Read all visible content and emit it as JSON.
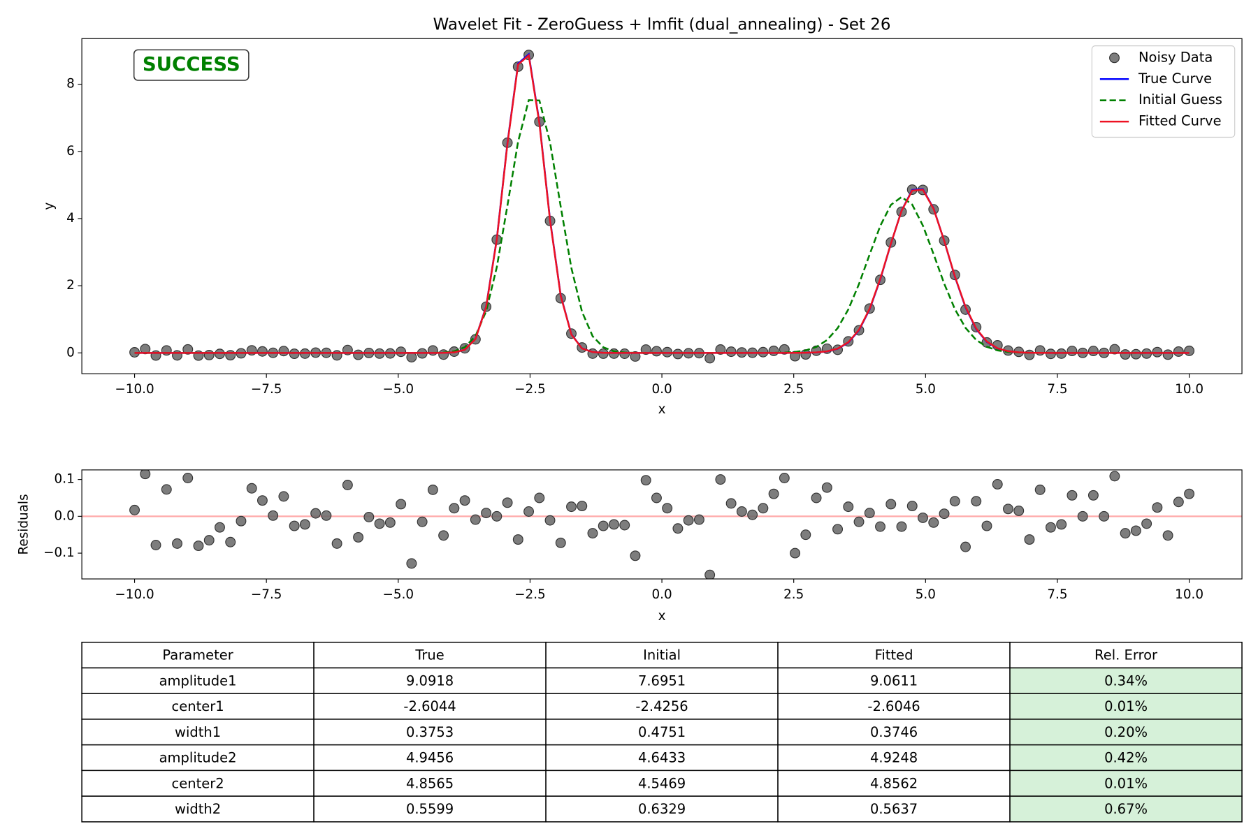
{
  "chart_data": [
    {
      "type": "line",
      "title": "Wavelet Fit - ZeroGuess + lmfit (dual_annealing) - Set 26",
      "xlabel": "x",
      "ylabel": "y",
      "annotation": "SUCCESS",
      "legend": "upper right",
      "grid": false,
      "xlim": [
        -11,
        11
      ],
      "ylim": [
        -0.62,
        9.36
      ],
      "xticks": [
        {
          "value": -10,
          "label": "−10.0"
        },
        {
          "value": -7.5,
          "label": "−7.5"
        },
        {
          "value": -5,
          "label": "−5.0"
        },
        {
          "value": -2.5,
          "label": "−2.5"
        },
        {
          "value": 0,
          "label": "0.0"
        },
        2.5,
        {
          "value": 5,
          "label": "5.0"
        },
        7.5,
        {
          "value": 10,
          "label": "10.0"
        }
      ],
      "yticks": [
        0,
        2,
        4,
        6,
        8
      ],
      "x": [
        -10,
        -9.798,
        -9.596,
        -9.394,
        -9.192,
        -8.99,
        -8.788,
        -8.586,
        -8.384,
        -8.182,
        -7.98,
        -7.778,
        -7.576,
        -7.374,
        -7.172,
        -6.97,
        -6.768,
        -6.566,
        -6.364,
        -6.162,
        -5.96,
        -5.758,
        -5.556,
        -5.354,
        -5.152,
        -4.949,
        -4.747,
        -4.545,
        -4.343,
        -4.141,
        -3.939,
        -3.737,
        -3.535,
        -3.333,
        -3.131,
        -2.929,
        -2.727,
        -2.525,
        -2.323,
        -2.121,
        -1.919,
        -1.717,
        -1.515,
        -1.313,
        -1.111,
        -0.909,
        -0.707,
        -0.505,
        -0.303,
        -0.101,
        0.101,
        0.303,
        0.505,
        0.707,
        0.909,
        1.111,
        1.313,
        1.515,
        1.717,
        1.919,
        2.121,
        2.323,
        2.525,
        2.727,
        2.929,
        3.131,
        3.333,
        3.535,
        3.737,
        3.939,
        4.141,
        4.343,
        4.545,
        4.747,
        4.949,
        5.152,
        5.354,
        5.556,
        5.758,
        5.96,
        6.162,
        6.364,
        6.566,
        6.768,
        6.97,
        7.172,
        7.374,
        7.576,
        7.778,
        7.98,
        8.182,
        8.384,
        8.586,
        8.788,
        8.99,
        9.192,
        9.394,
        9.596,
        9.798,
        10
      ],
      "series": [
        {
          "name": "Noisy Data",
          "color": "#666666",
          "marker": "o",
          "linestyle": "none",
          "values": [
            0.017,
            0.115,
            -0.078,
            0.073,
            -0.074,
            0.104,
            -0.08,
            -0.065,
            -0.03,
            -0.07,
            -0.013,
            0.076,
            0.043,
            0.002,
            0.054,
            -0.026,
            -0.022,
            0.008,
            0.002,
            -0.074,
            0.085,
            -0.057,
            -0.002,
            -0.02,
            -0.017,
            0.033,
            -0.128,
            -0.015,
            0.072,
            -0.05,
            0.038,
            0.137,
            0.405,
            1.375,
            3.372,
            6.26,
            8.525,
            8.873,
            6.883,
            3.93,
            1.627,
            0.574,
            0.16,
            -0.022,
            -0.023,
            -0.022,
            -0.024,
            -0.107,
            0.098,
            0.05,
            0.022,
            -0.033,
            -0.011,
            -0.009,
            -0.159,
            0.1,
            0.035,
            0.013,
            0.004,
            0.022,
            0.061,
            0.104,
            -0.099,
            -0.046,
            0.064,
            0.124,
            0.093,
            0.342,
            0.672,
            1.321,
            2.176,
            3.289,
            4.203,
            4.862,
            4.854,
            4.276,
            3.344,
            2.322,
            1.289,
            0.766,
            0.311,
            0.225,
            0.07,
            0.031,
            -0.059,
            0.073,
            -0.03,
            -0.022,
            0.057,
            0.0,
            0.057,
            0.0,
            0.109,
            -0.046,
            -0.039,
            -0.02,
            0.024,
            -0.052,
            0.039,
            0.061
          ]
        },
        {
          "name": "True Curve",
          "color": "#0000ff",
          "linestyle": "solid",
          "values": [
            0,
            0,
            0,
            0,
            0,
            0,
            0,
            0,
            0,
            0,
            0,
            0,
            0,
            0,
            0,
            0,
            0,
            0,
            0,
            0,
            0,
            0,
            0,
            0,
            0,
            0,
            0,
            0,
            0,
            0.002,
            0.016,
            0.096,
            0.42,
            1.379,
            3.394,
            6.25,
            8.617,
            8.892,
            6.867,
            3.969,
            1.717,
            0.556,
            0.135,
            0.024,
            0.003,
            0,
            0,
            0,
            0,
            0,
            0,
            0,
            0,
            0,
            0,
            0,
            0,
            0,
            0,
            0,
            0,
            0,
            0.001,
            0.004,
            0.013,
            0.043,
            0.122,
            0.306,
            0.671,
            1.293,
            2.188,
            3.25,
            4.238,
            4.853,
            4.878,
            4.305,
            3.335,
            2.269,
            1.355,
            0.71,
            0.327,
            0.132,
            0.047,
            0.015,
            0.004,
            0.001,
            0,
            0,
            0,
            0,
            0,
            0,
            0,
            0,
            0,
            0,
            0,
            0,
            0,
            0
          ]
        },
        {
          "name": "Initial Guess",
          "color": "#008000",
          "linestyle": "dashed",
          "values": [
            0,
            0,
            0,
            0,
            0,
            0,
            0,
            0,
            0,
            0,
            0,
            0,
            0,
            0,
            0,
            0,
            0,
            0,
            0,
            0,
            0,
            0,
            0,
            0,
            0,
            0,
            0,
            0,
            0.002,
            0.011,
            0.048,
            0.17,
            0.503,
            1.241,
            2.553,
            4.387,
            6.29,
            7.528,
            7.518,
            6.267,
            4.36,
            2.532,
            1.227,
            0.496,
            0.167,
            0.047,
            0.011,
            0.002,
            0,
            0,
            0,
            0,
            0,
            0,
            0,
            0,
            0,
            0,
            0,
            0.001,
            0.003,
            0.01,
            0.028,
            0.074,
            0.177,
            0.381,
            0.738,
            1.295,
            2.049,
            2.929,
            3.782,
            4.409,
            4.643,
            4.416,
            3.793,
            2.942,
            2.061,
            1.304,
            0.745,
            0.385,
            0.179,
            0.075,
            0.029,
            0.01,
            0.003,
            0.001,
            0,
            0,
            0,
            0,
            0,
            0,
            0,
            0,
            0,
            0,
            0,
            0,
            0,
            0
          ]
        },
        {
          "name": "Fitted Curve",
          "color": "#ee1122",
          "linestyle": "solid",
          "values": [
            0,
            0,
            0,
            0,
            0,
            0,
            0,
            0,
            0,
            0,
            0,
            0,
            0,
            0,
            0,
            0,
            0,
            0,
            0,
            0,
            0,
            0,
            0,
            0,
            0,
            0,
            0,
            0,
            0,
            0.002,
            0.016,
            0.094,
            0.414,
            1.366,
            3.372,
            6.223,
            8.588,
            8.86,
            6.833,
            3.941,
            1.699,
            0.548,
            0.132,
            0.024,
            0.003,
            0,
            0,
            0,
            0,
            0,
            0,
            0,
            0,
            0,
            0,
            0,
            0,
            0,
            0,
            0,
            0,
            0,
            0.001,
            0.004,
            0.014,
            0.046,
            0.128,
            0.316,
            0.687,
            1.312,
            2.204,
            3.256,
            4.231,
            4.834,
            4.858,
            4.293,
            3.337,
            2.281,
            1.372,
            0.725,
            0.337,
            0.138,
            0.05,
            0.016,
            0.004,
            0.001,
            0,
            0,
            0,
            0,
            0,
            0,
            0,
            0,
            0,
            0,
            0,
            0,
            0,
            0
          ]
        }
      ]
    },
    {
      "type": "scatter",
      "xlabel": "x",
      "ylabel": "Residuals",
      "grid": false,
      "xlim": [
        -11,
        11
      ],
      "ylim": [
        -0.17,
        0.126
      ],
      "xticks": [
        {
          "value": -10,
          "label": "−10.0"
        },
        {
          "value": -7.5,
          "label": "−7.5"
        },
        {
          "value": -5,
          "label": "−5.0"
        },
        {
          "value": -2.5,
          "label": "−2.5"
        },
        {
          "value": 0,
          "label": "0.0"
        },
        2.5,
        {
          "value": 5,
          "label": "5.0"
        },
        7.5,
        {
          "value": 10,
          "label": "10.0"
        }
      ],
      "yticks": [
        {
          "value": -0.1,
          "label": "−0.1"
        },
        {
          "value": 0,
          "label": "0.0"
        },
        0.1
      ],
      "reference_line": {
        "value": 0,
        "color": "#ffaaaa"
      },
      "color": "#666666",
      "x": [
        -10,
        -9.798,
        -9.596,
        -9.394,
        -9.192,
        -8.99,
        -8.788,
        -8.586,
        -8.384,
        -8.182,
        -7.98,
        -7.778,
        -7.576,
        -7.374,
        -7.172,
        -6.97,
        -6.768,
        -6.566,
        -6.364,
        -6.162,
        -5.96,
        -5.758,
        -5.556,
        -5.354,
        -5.152,
        -4.949,
        -4.747,
        -4.545,
        -4.343,
        -4.141,
        -3.939,
        -3.737,
        -3.535,
        -3.333,
        -3.131,
        -2.929,
        -2.727,
        -2.525,
        -2.323,
        -2.121,
        -1.919,
        -1.717,
        -1.515,
        -1.313,
        -1.111,
        -0.909,
        -0.707,
        -0.505,
        -0.303,
        -0.101,
        0.101,
        0.303,
        0.505,
        0.707,
        0.909,
        1.111,
        1.313,
        1.515,
        1.717,
        1.919,
        2.121,
        2.323,
        2.525,
        2.727,
        2.929,
        3.131,
        3.333,
        3.535,
        3.737,
        3.939,
        4.141,
        4.343,
        4.545,
        4.747,
        4.949,
        5.152,
        5.354,
        5.556,
        5.758,
        5.96,
        6.162,
        6.364,
        6.566,
        6.768,
        6.97,
        7.172,
        7.374,
        7.576,
        7.778,
        7.98,
        8.182,
        8.384,
        8.586,
        8.788,
        8.99,
        9.192,
        9.394,
        9.596,
        9.798,
        10
      ],
      "values": [
        0.017,
        0.115,
        -0.078,
        0.073,
        -0.074,
        0.104,
        -0.08,
        -0.065,
        -0.03,
        -0.07,
        -0.013,
        0.076,
        0.043,
        0.002,
        0.054,
        -0.026,
        -0.022,
        0.008,
        0.002,
        -0.074,
        0.085,
        -0.057,
        -0.002,
        -0.02,
        -0.017,
        0.033,
        -0.128,
        -0.015,
        0.072,
        -0.052,
        0.022,
        0.043,
        -0.009,
        0.009,
        0.0,
        0.037,
        -0.063,
        0.013,
        0.05,
        -0.011,
        -0.072,
        0.026,
        0.028,
        -0.046,
        -0.026,
        -0.022,
        -0.024,
        -0.107,
        0.098,
        0.05,
        0.022,
        -0.033,
        -0.011,
        -0.009,
        -0.159,
        0.1,
        0.035,
        0.013,
        0.004,
        0.022,
        0.061,
        0.104,
        -0.1,
        -0.05,
        0.05,
        0.078,
        -0.035,
        0.026,
        -0.015,
        0.009,
        -0.028,
        0.033,
        -0.028,
        0.028,
        -0.004,
        -0.017,
        0.007,
        0.041,
        -0.083,
        0.041,
        -0.026,
        0.087,
        0.02,
        0.015,
        -0.063,
        0.072,
        -0.03,
        -0.022,
        0.057,
        0.0,
        0.057,
        0.0,
        0.109,
        -0.046,
        -0.039,
        -0.02,
        0.024,
        -0.052,
        0.039,
        0.061
      ]
    }
  ],
  "table": {
    "highlight_color": "#d6f1d9",
    "header": [
      "Parameter",
      "True",
      "Initial",
      "Fitted",
      "Rel. Error"
    ],
    "rows": [
      [
        "amplitude1",
        "9.0918",
        "7.6951",
        "9.0611",
        "0.34%"
      ],
      [
        "center1",
        "-2.6044",
        "-2.4256",
        "-2.6046",
        "0.01%"
      ],
      [
        "width1",
        "0.3753",
        "0.4751",
        "0.3746",
        "0.20%"
      ],
      [
        "amplitude2",
        "4.9456",
        "4.6433",
        "4.9248",
        "0.42%"
      ],
      [
        "center2",
        "4.8565",
        "4.5469",
        "4.8562",
        "0.01%"
      ],
      [
        "width2",
        "0.5599",
        "0.6329",
        "0.5637",
        "0.67%"
      ]
    ]
  }
}
